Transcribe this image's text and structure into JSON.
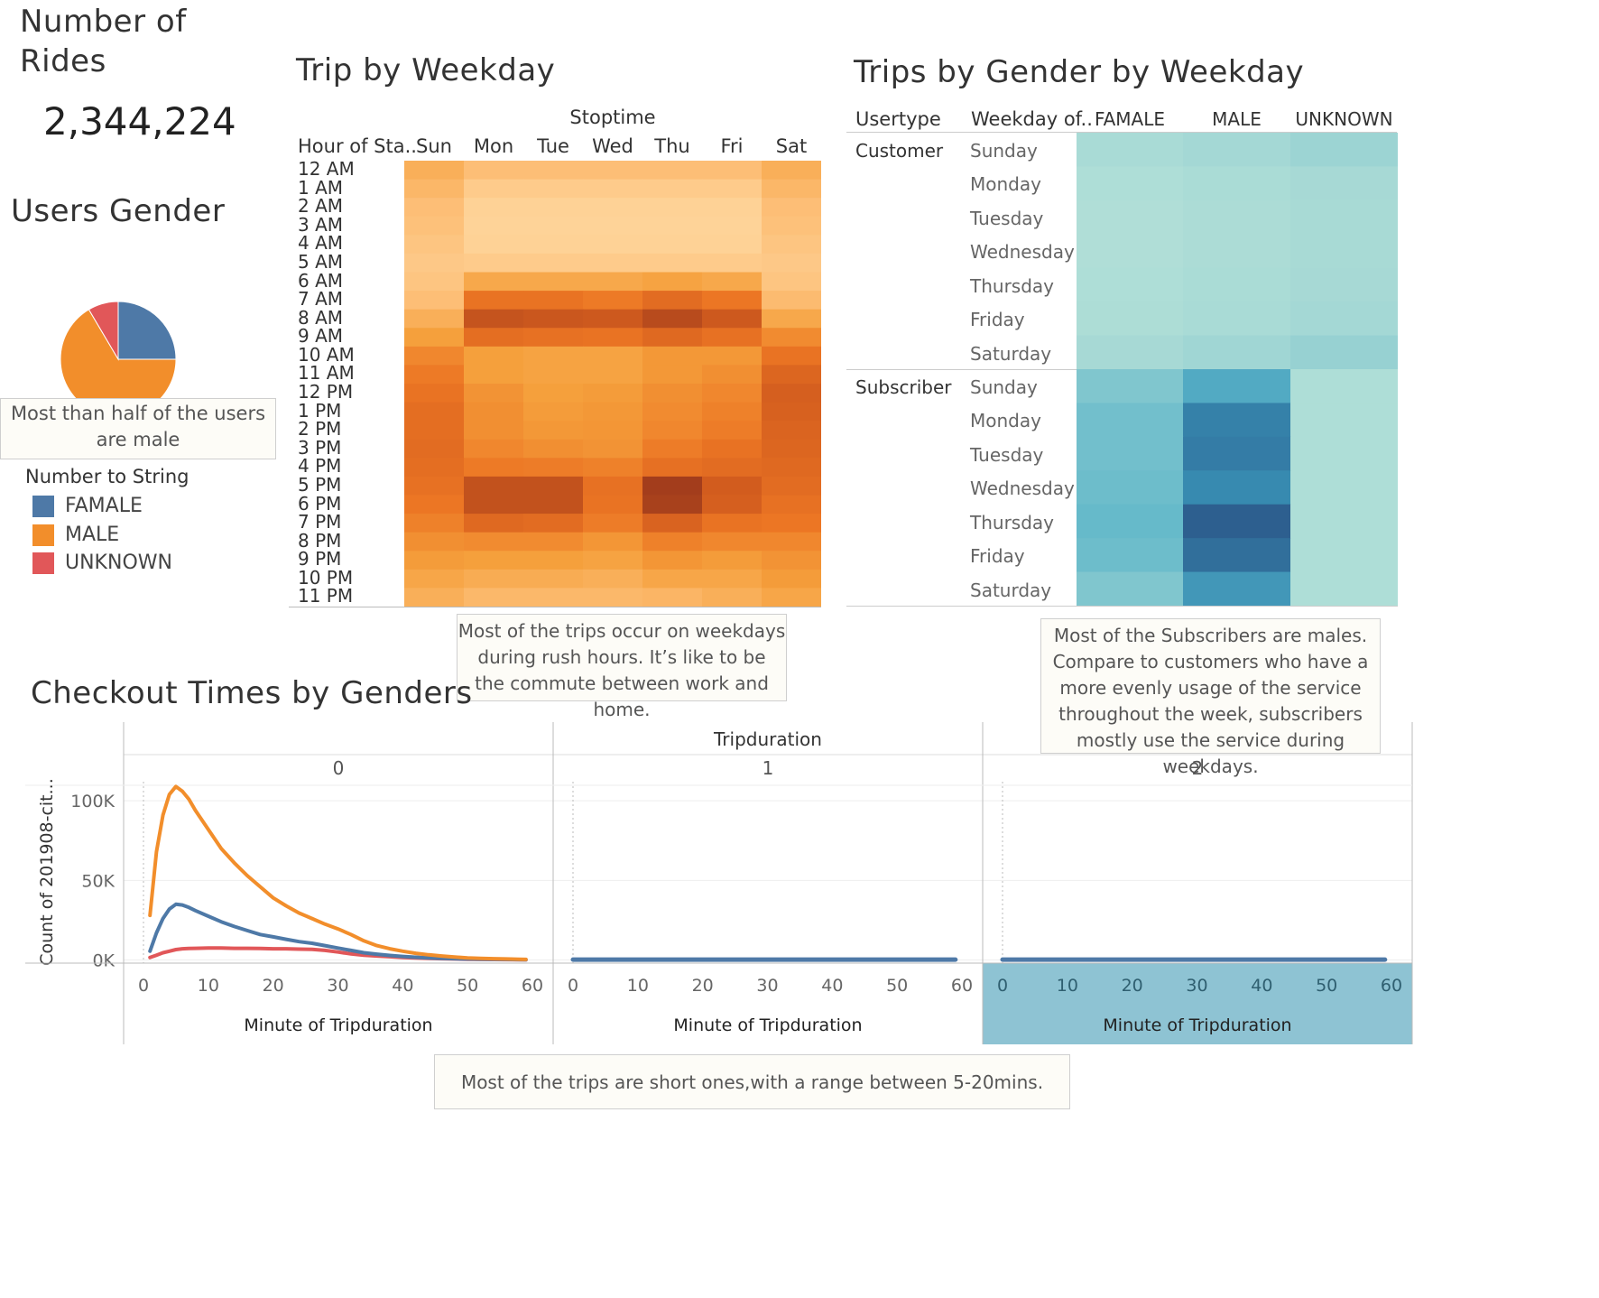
{
  "kpi": {
    "title_line1": "Number of",
    "title_line2": "Rides",
    "value": "2,344,224"
  },
  "pie": {
    "title": "Users Gender",
    "annotation_line1": "Most than half of the users",
    "annotation_line2": "are male",
    "legend_title": "Number to String",
    "legend": [
      {
        "label": "FAMALE",
        "color": "#4e79a7"
      },
      {
        "label": "MALE",
        "color": "#f28e2b"
      },
      {
        "label": "UNKNOWN",
        "color": "#e15759"
      }
    ],
    "slices": [
      {
        "label": "FAMALE",
        "value": 25.0,
        "color": "#4e79a7"
      },
      {
        "label": "MALE",
        "value": 66.5,
        "color": "#f28e2b"
      },
      {
        "label": "UNKNOWN",
        "value": 8.5,
        "color": "#e15759"
      }
    ]
  },
  "heatmap": {
    "title": "Trip by Weekday",
    "column_group_title": "Stoptime",
    "row_header": "Hour of Sta..",
    "columns": [
      "Sun",
      "Mon",
      "Tue",
      "Wed",
      "Thu",
      "Fri",
      "Sat"
    ],
    "rows": [
      "12 AM",
      "1 AM",
      "2 AM",
      "3 AM",
      "4 AM",
      "5 AM",
      "6 AM",
      "7 AM",
      "8 AM",
      "9 AM",
      "10 AM",
      "11 AM",
      "12 PM",
      "1 PM",
      "2 PM",
      "3 PM",
      "4 PM",
      "5 PM",
      "6 PM",
      "7 PM",
      "8 PM",
      "9 PM",
      "10 PM",
      "11 PM"
    ],
    "annotation_line1": "Most of the trips occur on weekdays",
    "annotation_line2": "during rush hours. It’s like to be",
    "annotation_line3": "the commute between work and home."
  },
  "gender_weekday": {
    "title": "Trips by Gender by Weekday",
    "col_usertype": "Usertype",
    "col_weekday": "Weekday of..",
    "columns": [
      "FAMALE",
      "MALE",
      "UNKNOWN"
    ],
    "groups": [
      {
        "usertype": "Customer",
        "days": [
          "Sunday",
          "Monday",
          "Tuesday",
          "Wednesday",
          "Thursday",
          "Friday",
          "Saturday"
        ]
      },
      {
        "usertype": "Subscriber",
        "days": [
          "Sunday",
          "Monday",
          "Tuesday",
          "Wednesday",
          "Thursday",
          "Friday",
          "Saturday"
        ]
      }
    ],
    "annotation_lines": [
      "Most of the Subscribers are males.",
      "Compare to customers who have a",
      "more evenly usage of the service",
      "throughout the week, subscribers",
      "mostly use the service during weekdays."
    ]
  },
  "checkout": {
    "title": "Checkout Times by Genders",
    "facet_title": "Tripduration",
    "facets": [
      "0",
      "1",
      "2"
    ],
    "xlabel": "Minute of Tripduration",
    "ylabel": "Count of 201908-cit...",
    "yticks": [
      "100K",
      "50K",
      "0K"
    ],
    "xticks": [
      "0",
      "10",
      "20",
      "30",
      "40",
      "50",
      "60"
    ],
    "annotation": "Most of the trips are short ones,with a range between 5-20mins."
  },
  "chart_data": [
    {
      "type": "pie",
      "title": "Users Gender",
      "categories": [
        "FAMALE",
        "MALE",
        "UNKNOWN"
      ],
      "values": [
        25.0,
        66.5,
        8.5
      ],
      "colors": [
        "#4e79a7",
        "#f28e2b",
        "#e15759"
      ],
      "legend_title": "Number to String",
      "legend_position": "bottom-left"
    },
    {
      "type": "heatmap",
      "title": "Trip by Weekday",
      "x": [
        "Sun",
        "Mon",
        "Tue",
        "Wed",
        "Thu",
        "Fri",
        "Sat"
      ],
      "xlabel": "Stoptime",
      "y": [
        "12 AM",
        "1 AM",
        "2 AM",
        "3 AM",
        "4 AM",
        "5 AM",
        "6 AM",
        "7 AM",
        "8 AM",
        "9 AM",
        "10 AM",
        "11 AM",
        "12 PM",
        "1 PM",
        "2 PM",
        "3 PM",
        "4 PM",
        "5 PM",
        "6 PM",
        "7 PM",
        "8 PM",
        "9 PM",
        "10 PM",
        "11 PM"
      ],
      "ylabel": "Hour of Sta..",
      "color_scale": "orange",
      "intensity": [
        [
          0.3,
          0.2,
          0.2,
          0.2,
          0.2,
          0.2,
          0.3
        ],
        [
          0.25,
          0.1,
          0.1,
          0.1,
          0.1,
          0.1,
          0.25
        ],
        [
          0.2,
          0.05,
          0.05,
          0.05,
          0.05,
          0.05,
          0.2
        ],
        [
          0.18,
          0.04,
          0.04,
          0.04,
          0.04,
          0.04,
          0.18
        ],
        [
          0.15,
          0.05,
          0.05,
          0.05,
          0.05,
          0.05,
          0.15
        ],
        [
          0.12,
          0.1,
          0.1,
          0.1,
          0.1,
          0.1,
          0.12
        ],
        [
          0.15,
          0.35,
          0.35,
          0.35,
          0.38,
          0.35,
          0.15
        ],
        [
          0.2,
          0.62,
          0.62,
          0.58,
          0.68,
          0.6,
          0.22
        ],
        [
          0.3,
          0.85,
          0.83,
          0.82,
          0.9,
          0.82,
          0.35
        ],
        [
          0.4,
          0.66,
          0.64,
          0.62,
          0.7,
          0.64,
          0.5
        ],
        [
          0.52,
          0.4,
          0.38,
          0.38,
          0.44,
          0.44,
          0.62
        ],
        [
          0.58,
          0.4,
          0.38,
          0.38,
          0.44,
          0.48,
          0.72
        ],
        [
          0.62,
          0.46,
          0.4,
          0.42,
          0.48,
          0.52,
          0.78
        ],
        [
          0.66,
          0.48,
          0.42,
          0.44,
          0.5,
          0.55,
          0.76
        ],
        [
          0.66,
          0.48,
          0.44,
          0.45,
          0.52,
          0.57,
          0.74
        ],
        [
          0.68,
          0.52,
          0.48,
          0.46,
          0.57,
          0.63,
          0.72
        ],
        [
          0.66,
          0.58,
          0.57,
          0.55,
          0.65,
          0.68,
          0.7
        ],
        [
          0.64,
          0.86,
          0.86,
          0.64,
          0.98,
          0.8,
          0.68
        ],
        [
          0.6,
          0.86,
          0.86,
          0.62,
          0.96,
          0.78,
          0.64
        ],
        [
          0.55,
          0.7,
          0.68,
          0.57,
          0.75,
          0.62,
          0.6
        ],
        [
          0.48,
          0.5,
          0.5,
          0.45,
          0.55,
          0.52,
          0.52
        ],
        [
          0.42,
          0.4,
          0.4,
          0.38,
          0.45,
          0.42,
          0.46
        ],
        [
          0.36,
          0.32,
          0.32,
          0.3,
          0.36,
          0.36,
          0.42
        ],
        [
          0.3,
          0.24,
          0.24,
          0.24,
          0.26,
          0.3,
          0.36
        ]
      ]
    },
    {
      "type": "heatmap",
      "title": "Trips by Gender by Weekday",
      "x": [
        "FAMALE",
        "MALE",
        "UNKNOWN"
      ],
      "y_groups": [
        "Customer",
        "Subscriber"
      ],
      "y": [
        "Sunday",
        "Monday",
        "Tuesday",
        "Wednesday",
        "Thursday",
        "Friday",
        "Saturday"
      ],
      "color_scale": "teal",
      "intensity": {
        "Customer": [
          [
            0.1,
            0.14,
            0.2
          ],
          [
            0.06,
            0.09,
            0.12
          ],
          [
            0.05,
            0.08,
            0.11
          ],
          [
            0.05,
            0.08,
            0.11
          ],
          [
            0.06,
            0.09,
            0.12
          ],
          [
            0.07,
            0.1,
            0.14
          ],
          [
            0.12,
            0.17,
            0.24
          ]
        ],
        "Subscriber": [
          [
            0.34,
            0.56,
            0.06
          ],
          [
            0.4,
            0.8,
            0.06
          ],
          [
            0.4,
            0.82,
            0.06
          ],
          [
            0.42,
            0.76,
            0.06
          ],
          [
            0.45,
            0.95,
            0.06
          ],
          [
            0.42,
            0.88,
            0.06
          ],
          [
            0.34,
            0.68,
            0.06
          ]
        ]
      }
    },
    {
      "type": "line",
      "title": "Checkout Times by Genders",
      "facets": [
        "0",
        "1",
        "2"
      ],
      "xlabel": "Minute of Tripduration",
      "ylabel": "Count of 201908-cit...",
      "xlim": [
        0,
        60
      ],
      "ylim": [
        -2000,
        112000
      ],
      "series": [
        {
          "name": "MALE",
          "color": "#f28e2b",
          "facet": "0",
          "x": [
            1,
            2,
            3,
            4,
            5,
            6,
            7,
            8,
            10,
            12,
            14,
            16,
            18,
            20,
            22,
            24,
            26,
            28,
            30,
            32,
            34,
            36,
            38,
            40,
            42,
            44,
            46,
            48,
            50,
            52,
            54,
            56,
            58,
            59
          ],
          "y": [
            28000,
            68000,
            91000,
            104000,
            109000,
            106000,
            101000,
            94000,
            82000,
            70000,
            61000,
            53000,
            46000,
            39000,
            34000,
            29500,
            26000,
            22500,
            19500,
            16000,
            12000,
            9000,
            7000,
            5500,
            4200,
            3200,
            2500,
            1800,
            1300,
            1000,
            800,
            600,
            400,
            300
          ]
        },
        {
          "name": "FAMALE",
          "color": "#4e79a7",
          "facet": "0",
          "x": [
            1,
            2,
            3,
            4,
            5,
            6,
            7,
            8,
            10,
            12,
            14,
            16,
            18,
            20,
            22,
            24,
            26,
            28,
            30,
            32,
            34,
            36,
            38,
            40,
            42,
            44,
            46,
            48,
            50,
            52,
            54,
            56,
            58,
            59
          ],
          "y": [
            5500,
            17000,
            26000,
            32000,
            35000,
            34500,
            33000,
            31000,
            27500,
            24000,
            21000,
            18500,
            16000,
            14500,
            13000,
            11500,
            10500,
            9000,
            7500,
            6000,
            4500,
            3600,
            2800,
            2200,
            1700,
            1300,
            1000,
            800,
            600,
            500,
            400,
            300,
            200,
            150
          ]
        },
        {
          "name": "UNKNOWN",
          "color": "#e15759",
          "facet": "0",
          "x": [
            1,
            2,
            3,
            4,
            5,
            6,
            7,
            8,
            10,
            12,
            14,
            16,
            18,
            20,
            22,
            24,
            26,
            28,
            30,
            32,
            34,
            36,
            38,
            40,
            42,
            44,
            46,
            48,
            50,
            52,
            54,
            56,
            58,
            59
          ],
          "y": [
            1500,
            3000,
            4500,
            5500,
            6500,
            7000,
            7200,
            7300,
            7500,
            7500,
            7300,
            7300,
            7200,
            7000,
            7000,
            6800,
            6600,
            6000,
            5000,
            3800,
            3000,
            2500,
            2000,
            1600,
            1300,
            1000,
            800,
            600,
            450,
            350,
            250,
            200,
            150,
            100
          ]
        },
        {
          "name": "FAMALE",
          "color": "#4e79a7",
          "facet": "1",
          "x": [
            0,
            10,
            20,
            30,
            40,
            50,
            59
          ],
          "y": [
            200,
            200,
            200,
            200,
            200,
            200,
            200
          ]
        },
        {
          "name": "FAMALE",
          "color": "#4e79a7",
          "facet": "2",
          "x": [
            0,
            10,
            20,
            30,
            40,
            50,
            59
          ],
          "y": [
            200,
            200,
            200,
            200,
            200,
            200,
            200
          ]
        }
      ]
    }
  ]
}
